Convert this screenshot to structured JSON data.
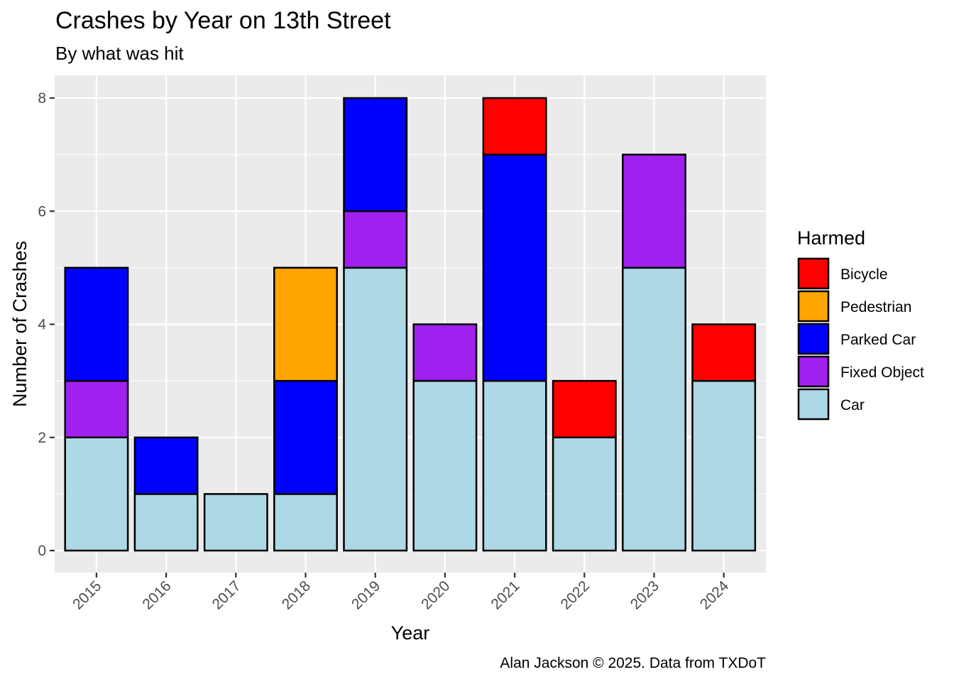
{
  "chart_data": {
    "type": "bar",
    "stacked": true,
    "title": "Crashes by Year on 13th Street",
    "subtitle": "By what was hit",
    "xlabel": "Year",
    "ylabel": "Number of Crashes",
    "caption": "Alan Jackson © 2025. Data from TXDoT",
    "categories": [
      "2015",
      "2016",
      "2017",
      "2018",
      "2019",
      "2020",
      "2021",
      "2022",
      "2023",
      "2024"
    ],
    "ylim": [
      0,
      8
    ],
    "yticks": [
      "0",
      "2",
      "4",
      "6",
      "8"
    ],
    "grid": true,
    "legend": {
      "title": "Harmed",
      "position": "right"
    },
    "series": [
      {
        "name": "Car",
        "color": "#ADD8E6",
        "values": [
          2,
          1,
          1,
          1,
          5,
          3,
          3,
          2,
          5,
          3
        ]
      },
      {
        "name": "Fixed Object",
        "color": "#A020F0",
        "values": [
          1,
          0,
          0,
          0,
          1,
          1,
          0,
          0,
          2,
          0
        ]
      },
      {
        "name": "Parked Car",
        "color": "#0000FF",
        "values": [
          2,
          1,
          0,
          2,
          2,
          0,
          4,
          0,
          0,
          0
        ]
      },
      {
        "name": "Pedestrian",
        "color": "#FFA500",
        "values": [
          0,
          0,
          0,
          2,
          0,
          0,
          0,
          0,
          0,
          0
        ]
      },
      {
        "name": "Bicycle",
        "color": "#FF0000",
        "values": [
          0,
          0,
          0,
          0,
          0,
          0,
          1,
          1,
          0,
          1
        ]
      }
    ],
    "legend_order": [
      "Bicycle",
      "Pedestrian",
      "Parked Car",
      "Fixed Object",
      "Car"
    ]
  }
}
